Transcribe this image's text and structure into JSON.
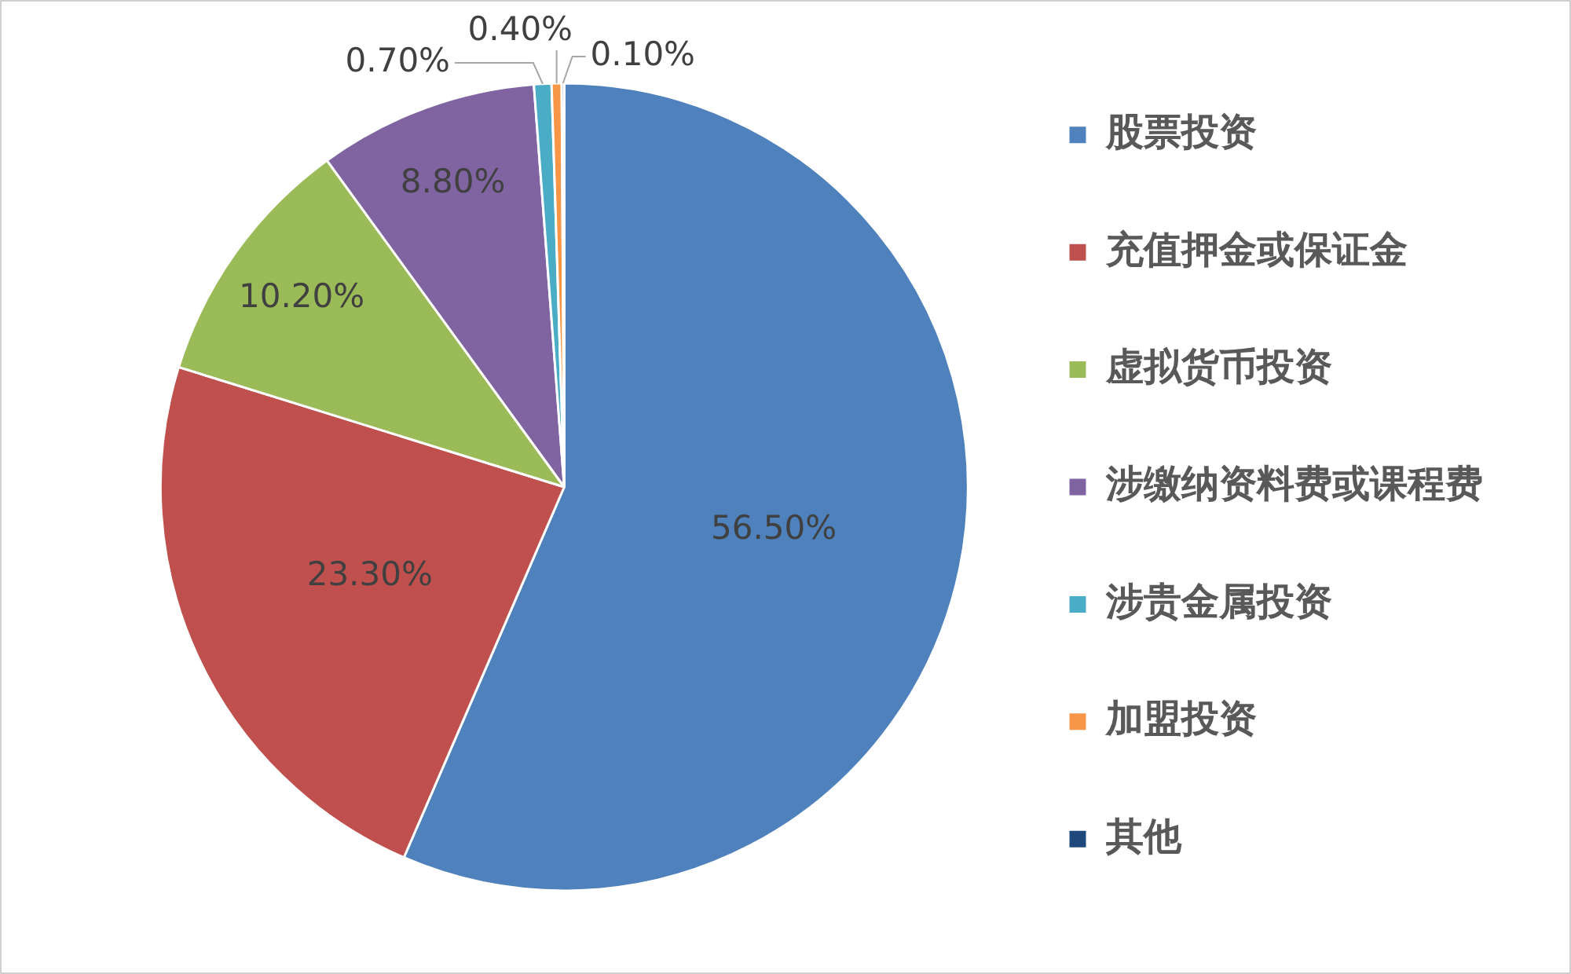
{
  "chart_data": {
    "type": "pie",
    "categories": [
      "股票投资",
      "充值押金或保证金",
      "虚拟货币投资",
      "涉缴纳资料费或课程费",
      "涉贵金属投资",
      "加盟投资",
      "其他"
    ],
    "values": [
      56.5,
      23.3,
      10.2,
      8.8,
      0.7,
      0.4,
      0.1
    ],
    "colors": [
      "#4f81bd",
      "#c0504d",
      "#9bbb59",
      "#8064a2",
      "#4bacc6",
      "#f79646",
      "#1f497d"
    ],
    "value_labels": [
      "56.50%",
      "23.30%",
      "10.20%",
      "8.80%",
      "0.70%",
      "0.40%",
      "0.10%"
    ],
    "legend": "right"
  }
}
